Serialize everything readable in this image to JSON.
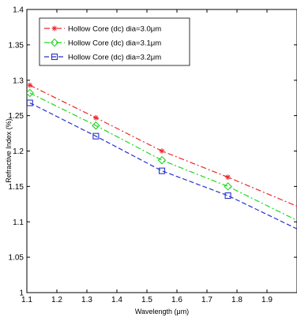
{
  "chart_data": {
    "type": "line",
    "xlabel": "Wavelength (μm)",
    "ylabel": "Refractive Index (%)",
    "xlim": [
      1.1,
      2.0
    ],
    "ylim": [
      1.0,
      1.4
    ],
    "xticks": [
      "1.1",
      "1.2",
      "1.3",
      "1.4",
      "1.5",
      "1.6",
      "1.7",
      "1.8",
      "1.9"
    ],
    "xtick_values": [
      1.1,
      1.2,
      1.3,
      1.4,
      1.5,
      1.6,
      1.7,
      1.8,
      1.9
    ],
    "yticks": [
      "1",
      "1.05",
      "1.1",
      "1.15",
      "1.2",
      "1.25",
      "1.3",
      "1.35",
      "1.4"
    ],
    "ytick_values": [
      1.0,
      1.05,
      1.1,
      1.15,
      1.2,
      1.25,
      1.3,
      1.35,
      1.4
    ],
    "grid": false,
    "legend_position": "top-left",
    "x": [
      1.11,
      1.33,
      1.55,
      1.77,
      2.0
    ],
    "series": [
      {
        "name": "Hollow Core (dc) dia=3.0μm",
        "values": [
          1.293,
          1.247,
          1.2,
          1.163,
          1.122
        ],
        "color": "#e8282d",
        "marker": "star",
        "dash": "dashdot"
      },
      {
        "name": "Hollow Core (dc) dia=3.1μm",
        "values": [
          1.282,
          1.236,
          1.187,
          1.15,
          1.102
        ],
        "color": "#1fd61f",
        "marker": "diamond",
        "dash": "dashdot"
      },
      {
        "name": "Hollow Core (dc) dia=3.2μm",
        "values": [
          1.268,
          1.221,
          1.172,
          1.137,
          1.09
        ],
        "color": "#2832c8",
        "marker": "square",
        "dash": "dashed"
      }
    ]
  }
}
